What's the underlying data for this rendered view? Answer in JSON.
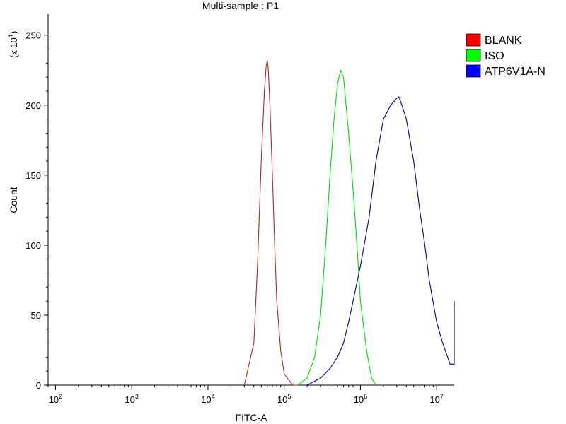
{
  "chart_data": {
    "type": "line",
    "title": "Multi-sample : P1",
    "xlabel": "FITC-A",
    "ylabel": "Count",
    "y_multiplier_label": "(x 10",
    "y_multiplier_exp": "1",
    "x_scale": "log",
    "xlim": [
      80,
      17000000
    ],
    "ylim": [
      0,
      265
    ],
    "x_ticks": [
      {
        "base": "10",
        "exp": "2",
        "value": 100
      },
      {
        "base": "10",
        "exp": "3",
        "value": 1000
      },
      {
        "base": "10",
        "exp": "4",
        "value": 10000
      },
      {
        "base": "10",
        "exp": "5",
        "value": 100000
      },
      {
        "base": "10",
        "exp": "6",
        "value": 1000000
      },
      {
        "base": "10",
        "exp": "7",
        "value": 10000000
      }
    ],
    "y_ticks": [
      {
        "label": "0",
        "value": 0
      },
      {
        "label": "50",
        "value": 50
      },
      {
        "label": "100",
        "value": 100
      },
      {
        "label": "150",
        "value": 150
      },
      {
        "label": "200",
        "value": 200
      },
      {
        "label": "250",
        "value": 250
      }
    ],
    "grid": false,
    "legend_position": "right",
    "series": [
      {
        "name": "BLANK",
        "color": "#a52a2a",
        "legend_color": "#ff0000",
        "x": [
          30000,
          40000,
          45000,
          50000,
          55000,
          58000,
          60000,
          62000,
          65000,
          70000,
          75000,
          80000,
          90000,
          100000,
          130000,
          150000
        ],
        "y": [
          0,
          30,
          90,
          160,
          210,
          228,
          232,
          225,
          200,
          150,
          100,
          60,
          25,
          8,
          0,
          0
        ]
      },
      {
        "name": "ISO",
        "color": "#00dd00",
        "legend_color": "#00ff00",
        "x": [
          150000,
          200000,
          250000,
          300000,
          350000,
          400000,
          450000,
          500000,
          550000,
          600000,
          700000,
          800000,
          900000,
          1000000,
          1200000,
          1400000,
          1600000
        ],
        "y": [
          0,
          5,
          20,
          50,
          100,
          150,
          190,
          215,
          225,
          220,
          180,
          140,
          100,
          60,
          25,
          5,
          0
        ]
      },
      {
        "name": "ATP6V1A-N",
        "color": "#00008b",
        "legend_color": "#0000ff",
        "x": [
          200000,
          300000,
          400000,
          500000,
          600000,
          700000,
          800000,
          1000000,
          1300000,
          1600000,
          2000000,
          2500000,
          3000000,
          3200000,
          3500000,
          4000000,
          5000000,
          6000000,
          7000000,
          8000000,
          10000000,
          12000000,
          15000000,
          17000000,
          17000000
        ],
        "y": [
          0,
          5,
          12,
          20,
          30,
          45,
          60,
          85,
          120,
          160,
          190,
          200,
          205,
          206,
          200,
          190,
          160,
          125,
          100,
          75,
          45,
          30,
          15,
          15,
          60
        ]
      }
    ]
  }
}
